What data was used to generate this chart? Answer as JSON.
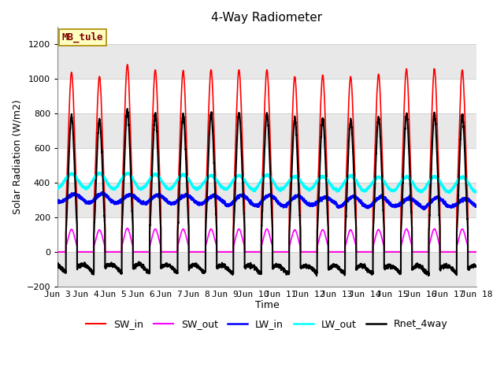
{
  "title": "4-Way Radiometer",
  "xlabel": "Time",
  "ylabel": "Solar Radiation (W/m2)",
  "ylim": [
    -200,
    1300
  ],
  "yticks": [
    -200,
    0,
    200,
    400,
    600,
    800,
    1000,
    1200
  ],
  "station_label": "MB_tule",
  "num_days": 15,
  "colors": {
    "SW_in": "#ff0000",
    "SW_out": "#ff00ff",
    "LW_in": "#0000ff",
    "LW_out": "#00ffff",
    "Rnet_4way": "#000000"
  },
  "line_widths": {
    "SW_in": 1.2,
    "SW_out": 1.2,
    "LW_in": 1.8,
    "LW_out": 1.8,
    "Rnet_4way": 1.5
  },
  "background_color": "#ffffff",
  "plot_bg_color": "#ffffff",
  "band_color": "#e8e8e8",
  "xtick_labels": [
    "Jun 3",
    "Jun 4",
    "Jun 5",
    "Jun 6",
    "Jun 7",
    "Jun 8",
    "Jun 9",
    "Jun 10",
    "Jun 11",
    "Jun 12",
    "Jun 13",
    "Jun 14",
    "Jun 15",
    "Jun 16",
    "Jun 17",
    "Jun 18"
  ],
  "title_fontsize": 11,
  "label_fontsize": 9,
  "tick_fontsize": 8,
  "legend_fontsize": 9
}
